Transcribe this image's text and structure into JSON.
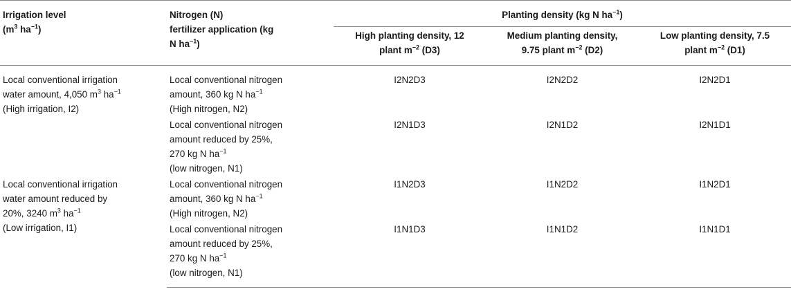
{
  "headers": {
    "irrigation": {
      "text": "Irrigation level",
      "unit_pre": "(m",
      "unit_sup": "3",
      "unit_mid": " ha",
      "unit_sup2": "−1",
      "unit_post": ")"
    },
    "nitrogen": {
      "line1": "Nitrogen (N)",
      "line2": "fertilizer application (kg",
      "line3_pre": "N ha",
      "line3_sup": "−1",
      "line3_post": ")"
    },
    "planting": {
      "pre": "Planting density (kg N ha",
      "sup": "−1",
      "post": ")"
    },
    "high": {
      "line1": "High planting density, 12",
      "line2_pre": "plant m",
      "line2_sup": "−2",
      "line2_post": " (D3)"
    },
    "medium": {
      "line1": "Medium planting density,",
      "line2_pre": "9.75 plant m",
      "line2_sup": "−2",
      "line2_post": " (D2)"
    },
    "low": {
      "line1": "Low planting density, 7.5",
      "line2_pre": "plant m",
      "line2_sup": "−2",
      "line2_post": " (D1)"
    }
  },
  "irrigation_levels": [
    {
      "line1": "Local conventional irrigation",
      "line2_pre": "water amount, 4,050 m",
      "line2_sup": "3",
      "line2_mid": " ha",
      "line2_sup2": "−1",
      "line3": "(High irrigation, I2)"
    },
    {
      "line1": "Local conventional irrigation",
      "line2": "water amount reduced by",
      "line3_pre": "20%, 3240 m",
      "line3_sup": "3",
      "line3_mid": " ha",
      "line3_sup2": "−1",
      "line4": "(Low irrigation, I1)"
    }
  ],
  "nitrogen_levels": {
    "n2": {
      "line1": "Local conventional nitrogen",
      "line2_pre": "amount, 360 kg N ha",
      "line2_sup": "−1",
      "line3": "(High nitrogen, N2)"
    },
    "n1": {
      "line1": "Local conventional nitrogen",
      "line2": "amount reduced by 25%,",
      "line3_pre": "270 kg N ha",
      "line3_sup": "−1",
      "line4": "(low nitrogen, N1)"
    }
  },
  "rows": [
    {
      "d3": "I2N2D3",
      "d2": "I2N2D2",
      "d1": "I2N2D1"
    },
    {
      "d3": "I2N1D3",
      "d2": "I2N1D2",
      "d1": "I2N1D1"
    },
    {
      "d3": "I1N2D3",
      "d2": "I1N2D2",
      "d1": "I1N2D1"
    },
    {
      "d3": "I1N1D3",
      "d2": "I1N1D2",
      "d1": "I1N1D1"
    }
  ]
}
